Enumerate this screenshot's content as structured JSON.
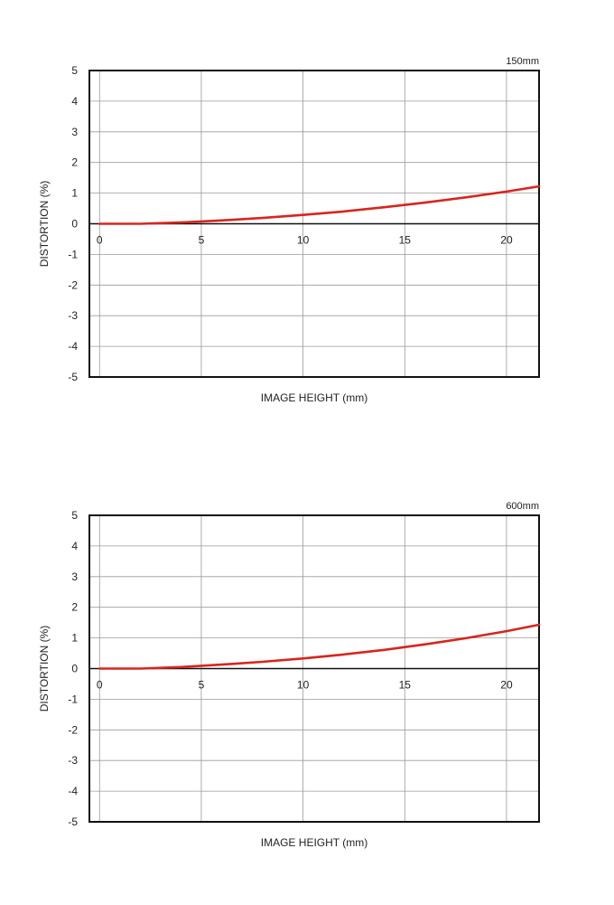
{
  "chart_data": [
    {
      "type": "line",
      "title": "150mm",
      "xlabel": "IMAGE HEIGHT (mm)",
      "ylabel": "DISTORTION (%)",
      "xlim": [
        -0.5,
        21.6
      ],
      "ylim": [
        -5,
        5
      ],
      "xticks": [
        0,
        5,
        10,
        15,
        20
      ],
      "yticks": [
        5,
        4,
        3,
        2,
        1,
        0,
        -1,
        -2,
        -3,
        -4,
        -5
      ],
      "grid": true,
      "series": [
        {
          "color": "#d7261d",
          "x": [
            0,
            2,
            4,
            6,
            8,
            10,
            12,
            14,
            16,
            18,
            20,
            21.6
          ],
          "y": [
            0.0,
            0.0,
            0.04,
            0.11,
            0.19,
            0.29,
            0.4,
            0.54,
            0.69,
            0.86,
            1.05,
            1.22
          ]
        }
      ]
    },
    {
      "type": "line",
      "title": "600mm",
      "xlabel": "IMAGE HEIGHT (mm)",
      "ylabel": "DISTORTION (%)",
      "xlim": [
        -0.5,
        21.6
      ],
      "ylim": [
        -5,
        5
      ],
      "xticks": [
        0,
        5,
        10,
        15,
        20
      ],
      "yticks": [
        5,
        4,
        3,
        2,
        1,
        0,
        -1,
        -2,
        -3,
        -4,
        -5
      ],
      "grid": true,
      "series": [
        {
          "color": "#d7261d",
          "x": [
            0,
            2,
            4,
            6,
            8,
            10,
            12,
            14,
            16,
            18,
            20,
            21.6
          ],
          "y": [
            0.0,
            0.0,
            0.05,
            0.13,
            0.22,
            0.33,
            0.46,
            0.61,
            0.79,
            0.99,
            1.22,
            1.43
          ]
        }
      ]
    }
  ]
}
